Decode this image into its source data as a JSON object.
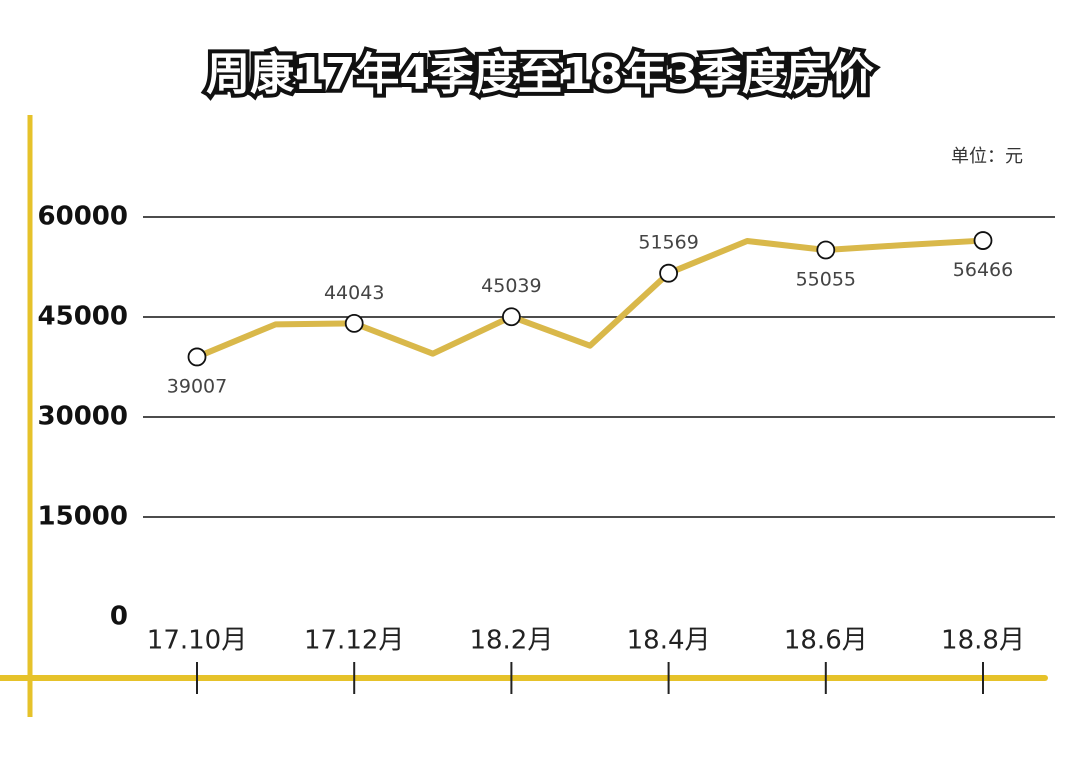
{
  "chart_data": {
    "type": "line",
    "title": "周康17年4季度至18年3季度房价",
    "unit_label": "单位：元",
    "categories": [
      "17.10月",
      null,
      "17.12月",
      null,
      "18.2月",
      null,
      "18.4月",
      null,
      "18.6月",
      null,
      "18.8月"
    ],
    "series": [
      {
        "color": "#d9b84a",
        "values": [
          39007,
          43900,
          44043,
          39500,
          45039,
          40700,
          51569,
          56400,
          55055,
          55800,
          56466
        ]
      }
    ],
    "labeled_points": [
      0,
      2,
      4,
      6,
      8,
      10
    ],
    "ylim": [
      0,
      60000
    ],
    "yticks": [
      0,
      15000,
      30000,
      45000,
      60000
    ],
    "grid": true
  }
}
